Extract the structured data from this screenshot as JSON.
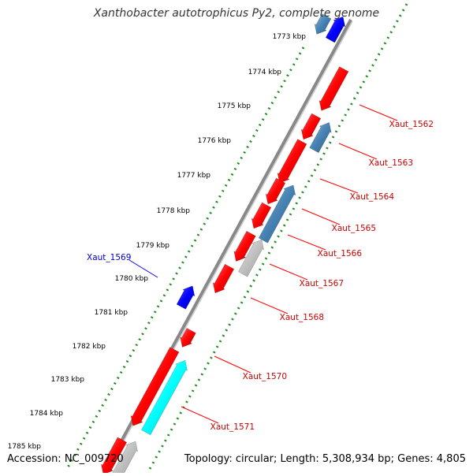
{
  "title": "Xanthobacter autotrophicus Py2, complete genome",
  "accession_text": "Accession: NC_009720",
  "summary_text": "Topology: circular; Length: 5,308,934 bp; Genes: 4,805",
  "colors": {
    "forward_gene": "#ff0000",
    "reverse_gene": "#4682b4",
    "selected_gene": "#0000ff",
    "rna": "#00ffff",
    "other": "#c0c0c0",
    "ruler_ticks": "#228b22",
    "backbone": "#888888",
    "label_forward": "#cc0000",
    "label_selected": "#0000cc"
  },
  "kbp_labels": [
    "1773 kbp",
    "1774 kbp",
    "1775 kbp",
    "1776 kbp",
    "1777 kbp",
    "1778 kbp",
    "1779 kbp",
    "1780 kbp",
    "1781 kbp",
    "1782 kbp",
    "1783 kbp",
    "1784 kbp",
    "1785 kbp"
  ],
  "gene_labels": [
    "Xaut_1562",
    "Xaut_1563",
    "Xaut_1564",
    "Xaut_1565",
    "Xaut_1566",
    "Xaut_1567",
    "Xaut_1568",
    "Xaut_1570",
    "Xaut_1571"
  ],
  "selected_label": "Xaut_1569"
}
